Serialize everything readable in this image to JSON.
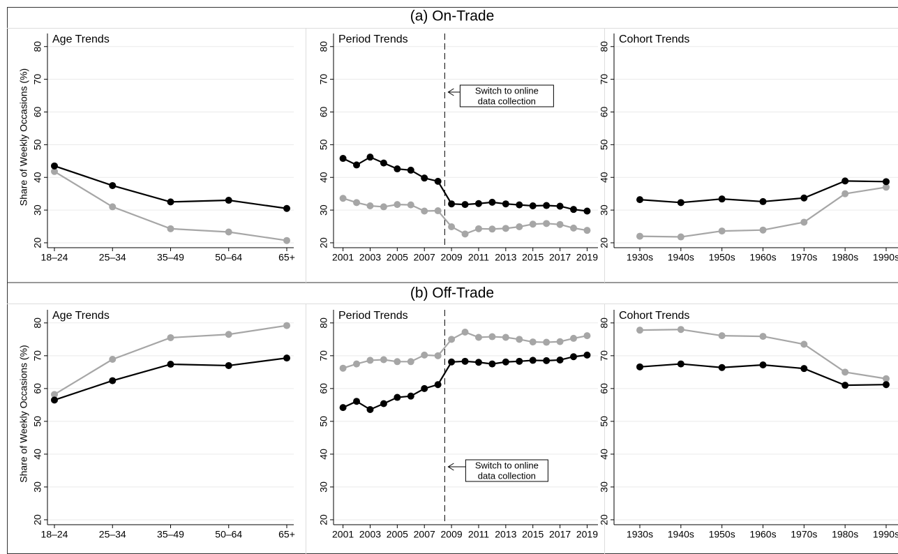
{
  "headings": [
    "(a) On-Trade",
    "(b) Off-Trade"
  ],
  "chart_data": [
    {
      "type": "line",
      "title": "Age Trends",
      "ylabel": "Share of Weekly Occasions (%)",
      "categories": [
        "18–24",
        "25–34",
        "35–49",
        "50–64",
        "65+"
      ],
      "series": [
        {
          "color": "#a6a6a6",
          "values": [
            41.8,
            31,
            24.3,
            23.3,
            20.7
          ]
        },
        {
          "color": "#000000",
          "values": [
            43.5,
            37.5,
            32.5,
            33,
            30.5
          ]
        }
      ],
      "ylim": [
        18.5,
        84
      ],
      "yticks": [
        20,
        30,
        40,
        50,
        60,
        70,
        80
      ],
      "grid": true
    },
    {
      "type": "line",
      "title": "Period Trends",
      "x": [
        2001,
        2002,
        2003,
        2004,
        2005,
        2006,
        2007,
        2008,
        2009,
        2010,
        2011,
        2012,
        2013,
        2014,
        2015,
        2016,
        2017,
        2018,
        2019
      ],
      "series": [
        {
          "color": "#a6a6a6",
          "values": [
            33.6,
            32.3,
            31.3,
            31,
            31.7,
            31.6,
            29.7,
            29.8,
            24.9,
            22.7,
            24.3,
            24.2,
            24.4,
            24.9,
            25.7,
            25.9,
            25.6,
            24.5,
            23.8
          ]
        },
        {
          "color": "#000000",
          "values": [
            45.8,
            43.8,
            46.2,
            44.4,
            42.6,
            42.2,
            39.8,
            38.8,
            31.9,
            31.7,
            32,
            32.4,
            31.9,
            31.6,
            31.3,
            31.4,
            31.2,
            30.2,
            29.7
          ]
        }
      ],
      "xlim": [
        2000.3,
        2019.8
      ],
      "xticks": [
        2001,
        2003,
        2005,
        2007,
        2009,
        2011,
        2013,
        2015,
        2017,
        2019
      ],
      "vline": 2008.5,
      "annotation": [
        "Switch to online",
        "data collection"
      ],
      "ylim": [
        18.5,
        84
      ],
      "yticks": [
        20,
        30,
        40,
        50,
        60,
        70,
        80
      ],
      "grid": true
    },
    {
      "type": "line",
      "title": "Cohort Trends",
      "categories": [
        "1930s",
        "1940s",
        "1950s",
        "1960s",
        "1970s",
        "1980s",
        "1990s"
      ],
      "series": [
        {
          "color": "#a6a6a6",
          "values": [
            22,
            21.8,
            23.6,
            23.9,
            26.3,
            35,
            37
          ]
        },
        {
          "color": "#000000",
          "values": [
            33.2,
            32.3,
            33.4,
            32.6,
            33.7,
            38.9,
            38.7
          ]
        }
      ],
      "ylim": [
        18.5,
        84
      ],
      "yticks": [
        20,
        30,
        40,
        50,
        60,
        70,
        80
      ],
      "grid": true
    },
    {
      "type": "line",
      "title": "Age Trends",
      "ylabel": "Share of Weekly Occasions (%)",
      "categories": [
        "18–24",
        "25–34",
        "35–49",
        "50–64",
        "65+"
      ],
      "series": [
        {
          "color": "#a6a6a6",
          "values": [
            58.2,
            68.9,
            75.5,
            76.5,
            79.2
          ]
        },
        {
          "color": "#000000",
          "values": [
            56.5,
            62.4,
            67.4,
            67,
            69.3
          ]
        }
      ],
      "ylim": [
        18.5,
        84
      ],
      "yticks": [
        20,
        30,
        40,
        50,
        60,
        70,
        80
      ],
      "grid": true
    },
    {
      "type": "line",
      "title": "Period Trends",
      "x": [
        2001,
        2002,
        2003,
        2004,
        2005,
        2006,
        2007,
        2008,
        2009,
        2010,
        2011,
        2012,
        2013,
        2014,
        2015,
        2016,
        2017,
        2018,
        2019
      ],
      "series": [
        {
          "color": "#a6a6a6",
          "values": [
            66.2,
            67.5,
            68.6,
            68.8,
            68.2,
            68.2,
            70.2,
            70,
            75,
            77.2,
            75.6,
            75.8,
            75.6,
            75,
            74.2,
            74.1,
            74.3,
            75.3,
            76.1
          ]
        },
        {
          "color": "#000000",
          "values": [
            54.2,
            56.1,
            53.6,
            55.4,
            57.3,
            57.7,
            60,
            61.2,
            68.1,
            68.3,
            68,
            67.5,
            68.1,
            68.3,
            68.6,
            68.5,
            68.7,
            69.7,
            70.2
          ]
        }
      ],
      "xlim": [
        2000.3,
        2019.8
      ],
      "xticks": [
        2001,
        2003,
        2005,
        2007,
        2009,
        2011,
        2013,
        2015,
        2017,
        2019
      ],
      "vline": 2008.5,
      "annotation": [
        "Switch to online",
        "data collection"
      ],
      "ylim": [
        18.5,
        84
      ],
      "yticks": [
        20,
        30,
        40,
        50,
        60,
        70,
        80
      ],
      "grid": true
    },
    {
      "type": "line",
      "title": "Cohort Trends",
      "categories": [
        "1930s",
        "1940s",
        "1950s",
        "1960s",
        "1970s",
        "1980s",
        "1990s"
      ],
      "series": [
        {
          "color": "#a6a6a6",
          "values": [
            77.8,
            78,
            76.1,
            75.9,
            73.5,
            65,
            63
          ]
        },
        {
          "color": "#000000",
          "values": [
            66.6,
            67.5,
            66.4,
            67.2,
            66.1,
            61,
            61.2
          ]
        }
      ],
      "ylim": [
        18.5,
        84
      ],
      "yticks": [
        20,
        30,
        40,
        50,
        60,
        70,
        80
      ],
      "grid": true
    }
  ]
}
